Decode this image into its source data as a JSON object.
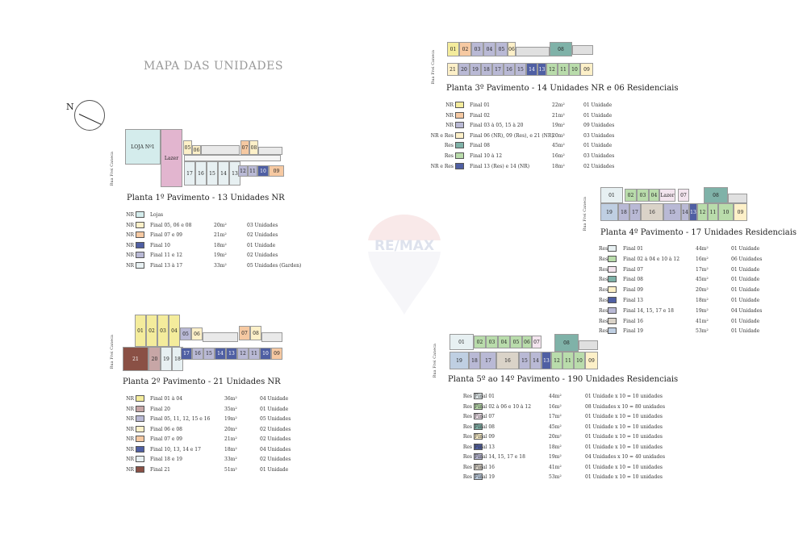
{
  "page_title": "MAPA DAS UNIDADES",
  "compass": {
    "label": "N"
  },
  "watermark": {
    "brand": "RE/MAX"
  },
  "colors": {
    "lojas": "#d4ecec",
    "final0506": "#fdf0c8",
    "final0709": "#f6c9a2",
    "final10": "#4f5fa3",
    "final1112": "#b9b9d5",
    "final1317": "#e7f0f2",
    "lazer": "#e2b5cf",
    "yellow": "#f4ec9c",
    "green": "#b9dcab",
    "teal": "#7fb2a8",
    "brown": "#8a5045",
    "mauve": "#c7a6a6",
    "lightgray": "#dcdcdc",
    "pink": "#f3e4ee",
    "beige": "#dad3c8",
    "blue": "#bfcfe2",
    "gray": "#b7b7b7"
  },
  "floors": [
    {
      "title": "Planta 1º Pavimento - 13 Unidades NR",
      "street": "Rua Frei Caneca",
      "cells": [
        "LOJA Nº1",
        "Lazer",
        "05",
        "06",
        "07",
        "08",
        "17",
        "16",
        "15",
        "14",
        "13",
        "12",
        "11",
        "10",
        "09"
      ],
      "legend": [
        {
          "type": "NR",
          "name": "Lojas",
          "area": "",
          "units": ""
        },
        {
          "type": "NR",
          "name": "Final 05, 06 e 08",
          "area": "20m²",
          "units": "03 Unidades"
        },
        {
          "type": "NR",
          "name": "Final 07 e 09",
          "area": "21m²",
          "units": "02 Unidades"
        },
        {
          "type": "NR",
          "name": "Final 10",
          "area": "18m²",
          "units": "01 Unidade"
        },
        {
          "type": "NR",
          "name": "Final 11 e 12",
          "area": "19m²",
          "units": "02 Unidades"
        },
        {
          "type": "NR",
          "name": "Final 13 à 17",
          "area": "33m²",
          "units": "05 Unidades (Garden)"
        }
      ]
    },
    {
      "title": "Planta 2º Pavimento - 21 Unidades NR",
      "street": "Rua Frei Caneca",
      "cells": [
        "01",
        "02",
        "03",
        "04",
        "05",
        "06",
        "07",
        "08",
        "21",
        "20",
        "19",
        "18",
        "17",
        "16",
        "15",
        "14",
        "13",
        "12",
        "11",
        "10",
        "09"
      ],
      "legend": [
        {
          "type": "NR",
          "name": "Final 01 à 04",
          "area": "36m²",
          "units": "04 Unidade"
        },
        {
          "type": "NR",
          "name": "Final 20",
          "area": "35m²",
          "units": "01 Unidade"
        },
        {
          "type": "NR",
          "name": "Final 05, 11, 12, 15 e 16",
          "area": "19m²",
          "units": "05 Unidades"
        },
        {
          "type": "NR",
          "name": "Final 06 e 08",
          "area": "20m²",
          "units": "02 Unidades"
        },
        {
          "type": "NR",
          "name": "Final 07 e 09",
          "area": "21m²",
          "units": "02 Unidades"
        },
        {
          "type": "NR",
          "name": "Final 10, 13, 14 e 17",
          "area": "18m²",
          "units": "04 Unidades"
        },
        {
          "type": "NR",
          "name": "Final 18 e 19",
          "area": "33m²",
          "units": "02 Unidades"
        },
        {
          "type": "NR",
          "name": "Final 21",
          "area": "51m²",
          "units": "01 Unidade"
        }
      ]
    },
    {
      "title": "Planta 3º Pavimento - 14 Unidades NR e 06 Residenciais",
      "street": "Rua Frei Caneca",
      "cells": [
        "01",
        "02",
        "03",
        "04",
        "05",
        "06",
        "08",
        "21",
        "20",
        "19",
        "18",
        "17",
        "16",
        "15",
        "14",
        "13",
        "12",
        "11",
        "10",
        "09"
      ],
      "legend": [
        {
          "type": "NR",
          "name": "Final 01",
          "area": "22m²",
          "units": "01 Unidade"
        },
        {
          "type": "NR",
          "name": "Final 02",
          "area": "21m²",
          "units": "01 Unidade"
        },
        {
          "type": "NR",
          "name": "Final 03 à 05, 15 à 20",
          "area": "19m²",
          "units": "09 Unidades"
        },
        {
          "type": "NR e Res",
          "name": "Final 06 (NR), 09 (Res), e 21 (NR)",
          "area": "20m²",
          "units": "03 Unidades"
        },
        {
          "type": "Res",
          "name": "Final 08",
          "area": "45m²",
          "units": "01 Unidade"
        },
        {
          "type": "Res",
          "name": "Final 10 à 12",
          "area": "16m²",
          "units": "03 Unidades"
        },
        {
          "type": "NR e Res",
          "name": "Final 13 (Res) e 14 (NR)",
          "area": "18m²",
          "units": "02 Unidades"
        }
      ]
    },
    {
      "title": "Planta 4º Pavimento - 17 Unidades Residenciais",
      "street": "Rua Frei Caneca",
      "cells": [
        "01",
        "02",
        "03",
        "04",
        "Lazer",
        "07",
        "08",
        "19",
        "18",
        "17",
        "16",
        "15",
        "14",
        "13",
        "12",
        "11",
        "10",
        "09"
      ],
      "legend": [
        {
          "type": "Res",
          "name": "Final 01",
          "area": "44m²",
          "units": "01 Unidade"
        },
        {
          "type": "Res",
          "name": "Final 02 à 04 e 10 à 12",
          "area": "16m²",
          "units": "06 Unidades"
        },
        {
          "type": "Res",
          "name": "Final 07",
          "area": "17m²",
          "units": "01 Unidade"
        },
        {
          "type": "Res",
          "name": "Final 08",
          "area": "45m²",
          "units": "01 Unidade"
        },
        {
          "type": "Res",
          "name": "Final 09",
          "area": "20m²",
          "units": "01 Unidade"
        },
        {
          "type": "Res",
          "name": "Final 13",
          "area": "18m²",
          "units": "01 Unidade"
        },
        {
          "type": "Res",
          "name": "Final 14, 15, 17 e 18",
          "area": "19m²",
          "units": "04 Unidades"
        },
        {
          "type": "Res",
          "name": "Final 16",
          "area": "41m²",
          "units": "01 Unidade"
        },
        {
          "type": "Res",
          "name": "Final 19",
          "area": "53m²",
          "units": "01 Unidade"
        }
      ]
    },
    {
      "title": "Planta 5º ao 14º Pavimento - 190 Unidades Residenciais",
      "street": "Rua Frei Caneca",
      "cells": [
        "01",
        "02",
        "03",
        "04",
        "05",
        "06",
        "07",
        "08",
        "19",
        "18",
        "17",
        "16",
        "15",
        "14",
        "13",
        "12",
        "11",
        "10",
        "09"
      ],
      "legend": [
        {
          "type": "Res",
          "name": "Final 01",
          "area": "44m²",
          "units": "01 Unidade x 10 = 10 unidades"
        },
        {
          "type": "Res",
          "name": "Final 02 à 06 e 10 à 12",
          "area": "16m²",
          "units": "08 Unidades x 10 = 80 unidades"
        },
        {
          "type": "Res",
          "name": "Final 07",
          "area": "17m²",
          "units": "01 Unidade x 10 = 10 unidades"
        },
        {
          "type": "Res",
          "name": "Final 08",
          "area": "45m²",
          "units": "01 Unidade x 10 = 10 unidades"
        },
        {
          "type": "Res",
          "name": "Final 09",
          "area": "20m²",
          "units": "01 Unidade x 10 = 10 unidades"
        },
        {
          "type": "Res",
          "name": "Final 13",
          "area": "18m²",
          "units": "01 Unidade x 10 = 10 unidades"
        },
        {
          "type": "Res",
          "name": "Final 14, 15, 17 e 18",
          "area": "19m²",
          "units": "04 Unidades x 10 = 40 unidades"
        },
        {
          "type": "Res",
          "name": "Final 16",
          "area": "41m²",
          "units": "01 Unidade x 10 = 10 unidades"
        },
        {
          "type": "Res",
          "name": "Final 19",
          "area": "53m²",
          "units": "01 Unidade x 10 = 10 unidades"
        }
      ]
    }
  ]
}
